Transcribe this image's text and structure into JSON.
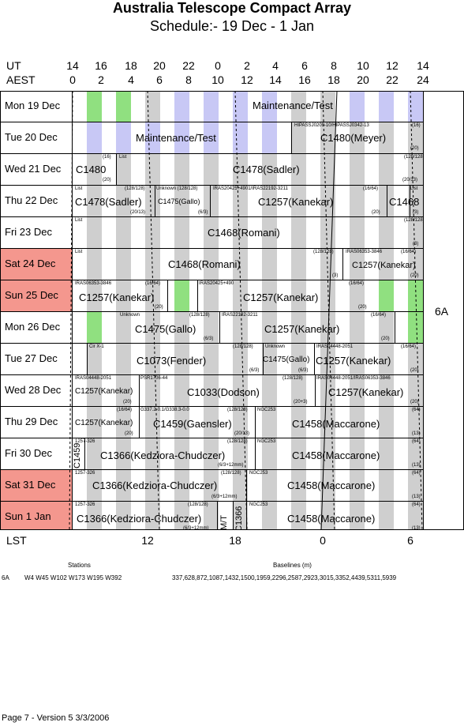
{
  "title": "Australia Telescope Compact Array",
  "subtitle": "Schedule:- 19 Dec - 1  Jan",
  "ut_label": "UT",
  "aest_label": "AEST",
  "ut_ticks": [
    "14",
    "16",
    "18",
    "20",
    "22",
    "0",
    "2",
    "4",
    "6",
    "8",
    "10",
    "12",
    "14"
  ],
  "aest_ticks": [
    "0",
    "2",
    "4",
    "6",
    "8",
    "10",
    "12",
    "14",
    "16",
    "18",
    "20",
    "22",
    "24"
  ],
  "config": "6A",
  "lst_label": "LST",
  "lst_ticks": [
    "12",
    "18",
    "0",
    "6"
  ],
  "colors": {
    "weekend": "#f4978e",
    "green": "#90e080",
    "maint": "#c8c8f5",
    "gray": "#cfcfcf"
  },
  "rows": [
    {
      "day": "Mon  19 Dec",
      "weekend": false,
      "main": "Maintenance/Test"
    },
    {
      "day": "Tue  20 Dec",
      "weekend": false,
      "main": "Maintenance/Test",
      "main2": "C1480(Meyer)",
      "small": [
        "HIPASSJ0209-10/HIPASSJ0342-13",
        "(16)",
        "(20)"
      ]
    },
    {
      "day": "Wed  21 Dec",
      "weekend": false,
      "main": "C1480",
      "main2": "C1478(Sadler)",
      "small": [
        "(16)",
        "List",
        "(20)",
        "(128/128)",
        "(20/13)"
      ]
    },
    {
      "day": "Thu  22 Dec",
      "weekend": false,
      "main": "C1478(Sadler)",
      "main2": "C1475(Gallo)",
      "main3": "C1257(Kanekar)",
      "main4": "C1468",
      "small": [
        "List",
        "(128/128)",
        "(20/13)",
        "Unknown (128/128)",
        "(6/3)",
        "IRAS20425+4901/IRAS22192-3211",
        "(16/64)",
        "(20)",
        "List",
        "(3)"
      ]
    },
    {
      "day": "Fri   23 Dec",
      "weekend": false,
      "main": "C1468(Romani)",
      "small": [
        "List",
        "(128/128)",
        "(3)"
      ]
    },
    {
      "day": "Sat  24 Dec",
      "weekend": true,
      "main": "C1468(Romani)",
      "main2": "C1257(Kanekar)",
      "small": [
        "List",
        "(128/128)",
        "(3)",
        "IRAS06353-3846",
        "(16/64)",
        "(20)"
      ]
    },
    {
      "day": "Sun  25 Dec",
      "weekend": true,
      "main": "C1257(Kanekar)",
      "main2": "C1257(Kanekar)",
      "small": [
        "IRAS06353-3846",
        "(16/64)",
        "(20)",
        "IRAS20425+490",
        "(16/64)",
        "(20)"
      ]
    },
    {
      "day": "Mon  26 Dec",
      "weekend": false,
      "main": "C1475(Gallo)",
      "main2": "C1257(Kanekar)",
      "small": [
        "Unknown",
        "(128/128)",
        "(6/3)",
        "IRAS22192-3211",
        "(16/64)",
        "(20)"
      ]
    },
    {
      "day": "Tue   27 Dec",
      "weekend": false,
      "main": "C1073(Fender)",
      "main2": "C1475(Gallo)",
      "main3": "C1257(Kanekar)",
      "small": [
        "Cir X-1",
        "(128/128)",
        "(6/3)",
        "Unknown",
        "(6/3)",
        "IRAS04448-2051",
        "(16/64)",
        "(20)"
      ]
    },
    {
      "day": "Wed  28 Dec",
      "weekend": false,
      "main": "C1257(Kanekar)",
      "main2": "C1033(Dodson)",
      "main3": "C1257(Kanekar)",
      "small": [
        "IRAS04448-2051",
        "(20)",
        "PSR1706-44",
        "(128/128)",
        "(20+3)",
        "IRAS04448-2051/IRAS06353-3846",
        "(20)"
      ]
    },
    {
      "day": "Thu  29 Dec",
      "weekend": false,
      "main": "C1257(Kanekar)",
      "main2": "C1459(Gaensler)",
      "main3": "C1458(Maccarone)",
      "small": [
        "(16/64)",
        "(20)",
        "G337.2-0.1/G338.3-0.0",
        "(128/128)",
        "(20/13)",
        "NGC253",
        "(64)",
        "(13)"
      ]
    },
    {
      "day": "Fri   30 Dec",
      "weekend": false,
      "main": "C1366(Kedziora-Chudczer)",
      "main2": "C1458(Maccarone)",
      "vertical": "C1459",
      "small": [
        "1257-326",
        "(128/128)",
        "(6/3+12mm)",
        "NGC253",
        "(64)",
        "(13)"
      ]
    },
    {
      "day": "Sat  31 Dec",
      "weekend": true,
      "main": "C1366(Kedziora-Chudczer)",
      "main2": "C1458(Maccarone)",
      "small": [
        "1257-326",
        "(128/128)",
        "(6/3+12mm)",
        "NGC253",
        "(64)",
        "(13)"
      ]
    },
    {
      "day": "Sun   1  Jan",
      "weekend": true,
      "main": "C1366(Kedziora-Chudczer)",
      "main2": "C1458(Maccarone)",
      "vertical": "M/T",
      "vertical2": "C1366",
      "small": [
        "1257-326",
        "(128/128)",
        "(6/3+12mm)",
        "NGC253",
        "(64)",
        "(13)"
      ]
    }
  ],
  "stations_label": "Stations",
  "baselines_label": "Baselines (m)",
  "config_row": "6A",
  "stations": "W4  W45  W102  W173  W195  W392",
  "baselines": "337,628,872,1087,1432,1500,1959,2296,2587,2923,3015,3352,4439,5311,5939",
  "footer": "Page 7 - Version 5  3/3/2006"
}
